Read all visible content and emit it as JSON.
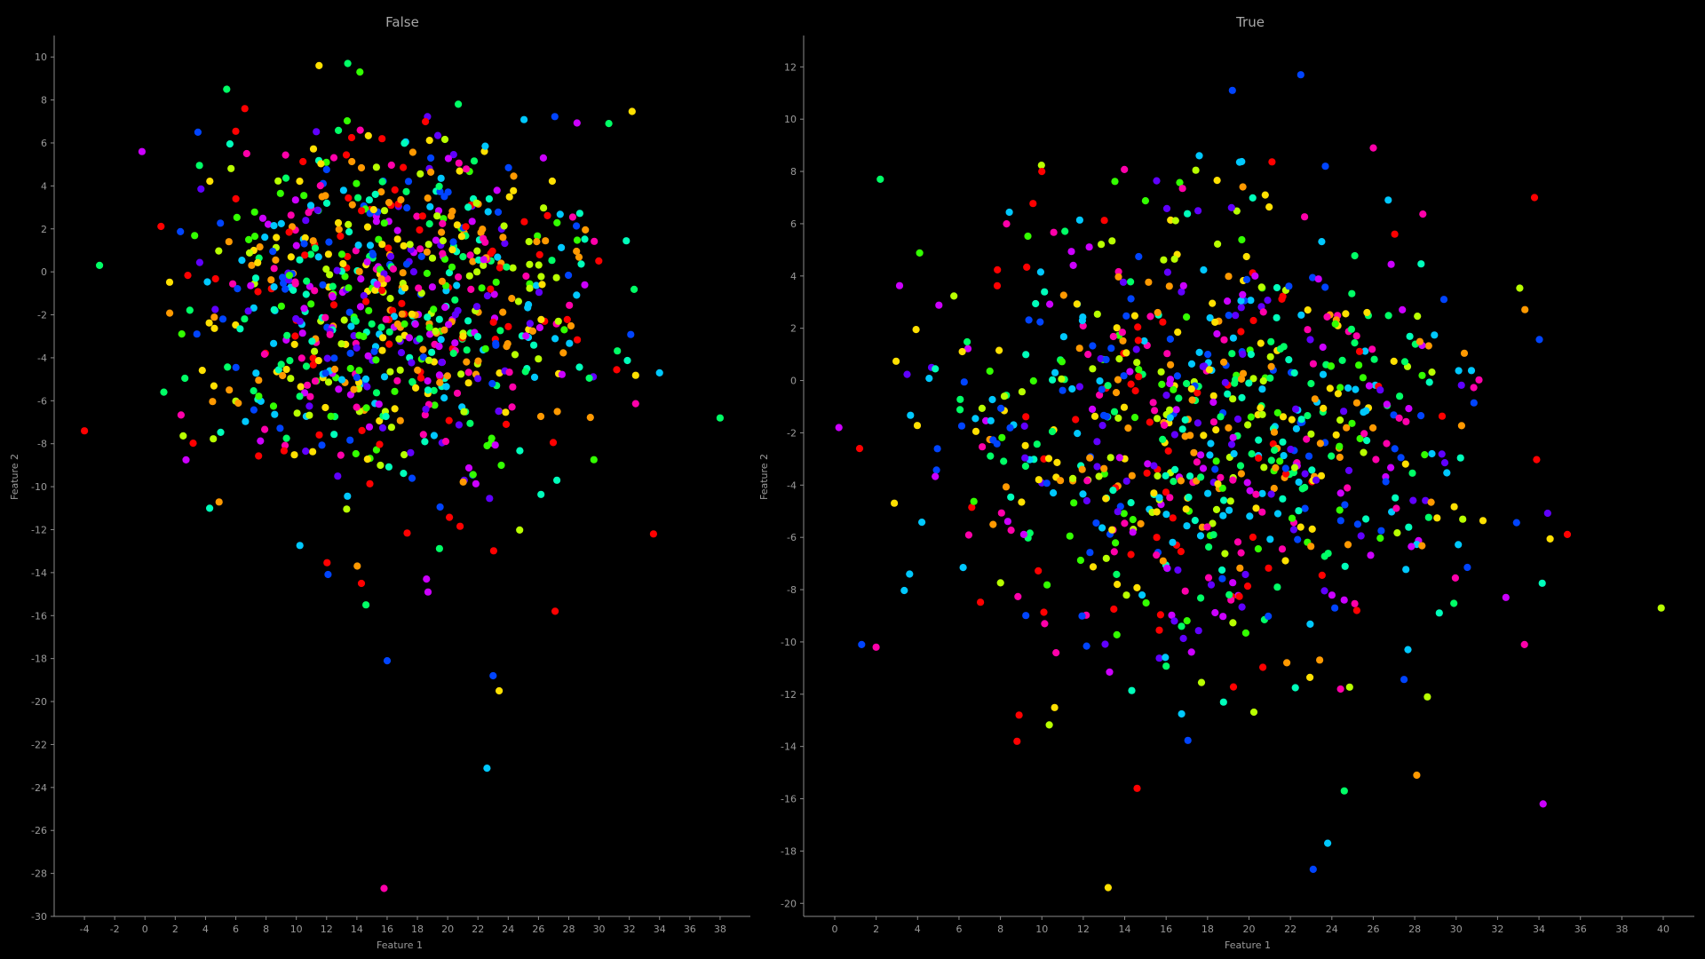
{
  "chart_data": [
    {
      "type": "scatter",
      "title": "False",
      "xlabel": "Feature 1",
      "ylabel": "Feature 2",
      "xlim": [
        -6,
        40
      ],
      "ylim": [
        -30,
        11
      ],
      "xticks": [
        -4,
        -2,
        0,
        2,
        4,
        6,
        8,
        10,
        12,
        14,
        16,
        18,
        20,
        22,
        24,
        26,
        28,
        30,
        32,
        34,
        36,
        38
      ],
      "yticks": [
        -30,
        -28,
        -26,
        -24,
        -22,
        -20,
        -18,
        -16,
        -14,
        -12,
        -10,
        -8,
        -6,
        -4,
        -2,
        0,
        2,
        4,
        6,
        8,
        10
      ],
      "grid": false,
      "legend": "none",
      "palette": [
        "#ff0000",
        "#ff9900",
        "#ffe000",
        "#b8ff00",
        "#33ff00",
        "#00ff66",
        "#00ffbb",
        "#00c8ff",
        "#0044ff",
        "#6000ff",
        "#cc00ff",
        "#ff00aa"
      ],
      "notable_points": [
        {
          "x": -4.0,
          "y": -7.4,
          "color": "#ff0000"
        },
        {
          "x": -3.0,
          "y": 0.3,
          "color": "#00ff66"
        },
        {
          "x": -0.2,
          "y": 5.6,
          "color": "#cc00ff"
        },
        {
          "x": 3.5,
          "y": 6.5,
          "color": "#0044ff"
        },
        {
          "x": 11.5,
          "y": 9.6,
          "color": "#ffe000"
        },
        {
          "x": 13.4,
          "y": 9.7,
          "color": "#00ff66"
        },
        {
          "x": 14.2,
          "y": 9.3,
          "color": "#33ff00"
        },
        {
          "x": 5.4,
          "y": 8.5,
          "color": "#00ff66"
        },
        {
          "x": 6.6,
          "y": 7.6,
          "color": "#ff0000"
        },
        {
          "x": 20.7,
          "y": 7.8,
          "color": "#00ff66"
        },
        {
          "x": 38.0,
          "y": -6.8,
          "color": "#00ff66"
        },
        {
          "x": 34.0,
          "y": -4.7,
          "color": "#00c8ff"
        },
        {
          "x": 33.6,
          "y": -12.2,
          "color": "#ff0000"
        },
        {
          "x": 14.3,
          "y": -14.5,
          "color": "#ff0000"
        },
        {
          "x": 14.6,
          "y": -15.5,
          "color": "#00ff66"
        },
        {
          "x": 27.1,
          "y": -15.8,
          "color": "#ff0000"
        },
        {
          "x": 18.6,
          "y": -14.3,
          "color": "#cc00ff"
        },
        {
          "x": 18.7,
          "y": -14.9,
          "color": "#cc00ff"
        },
        {
          "x": 16.0,
          "y": -18.1,
          "color": "#0044ff"
        },
        {
          "x": 23.0,
          "y": -18.8,
          "color": "#0044ff"
        },
        {
          "x": 23.4,
          "y": -19.5,
          "color": "#ffe000"
        },
        {
          "x": 22.6,
          "y": -23.1,
          "color": "#00c8ff"
        },
        {
          "x": 15.8,
          "y": -28.7,
          "color": "#ff00aa"
        }
      ],
      "cluster": {
        "count": 820,
        "center": [
          16.5,
          -1.4
        ],
        "sd": [
          6.6,
          4.3
        ],
        "x_range": [
          1,
          33
        ],
        "y_range": [
          -14.5,
          7.8
        ]
      }
    },
    {
      "type": "scatter",
      "title": "True",
      "xlabel": "Feature 1",
      "ylabel": "Feature 2",
      "xlim": [
        -1.5,
        41.5
      ],
      "ylim": [
        -20.5,
        13.2
      ],
      "xticks": [
        0,
        2,
        4,
        6,
        8,
        10,
        12,
        14,
        16,
        18,
        20,
        22,
        24,
        26,
        28,
        30,
        32,
        34,
        36,
        38,
        40
      ],
      "yticks": [
        -20,
        -18,
        -16,
        -14,
        -12,
        -10,
        -8,
        -6,
        -4,
        -2,
        0,
        2,
        4,
        6,
        8,
        10,
        12
      ],
      "grid": false,
      "legend": "none",
      "palette": [
        "#ff0000",
        "#ff9900",
        "#ffe000",
        "#b8ff00",
        "#33ff00",
        "#00ff66",
        "#00ffbb",
        "#00c8ff",
        "#0044ff",
        "#6000ff",
        "#cc00ff",
        "#ff00aa"
      ],
      "notable_points": [
        {
          "x": 0.2,
          "y": -1.8,
          "color": "#cc00ff"
        },
        {
          "x": 2.2,
          "y": 7.7,
          "color": "#00ff66"
        },
        {
          "x": 1.2,
          "y": -2.6,
          "color": "#ff0000"
        },
        {
          "x": 1.3,
          "y": -10.1,
          "color": "#0044ff"
        },
        {
          "x": 2.0,
          "y": -10.2,
          "color": "#ff00aa"
        },
        {
          "x": 19.2,
          "y": 11.1,
          "color": "#0044ff"
        },
        {
          "x": 22.5,
          "y": 11.7,
          "color": "#0044ff"
        },
        {
          "x": 26.0,
          "y": 8.9,
          "color": "#ff00aa"
        },
        {
          "x": 17.6,
          "y": 8.6,
          "color": "#00c8ff"
        },
        {
          "x": 10.0,
          "y": 8.0,
          "color": "#ff0000"
        },
        {
          "x": 39.9,
          "y": -8.7,
          "color": "#b8ff00"
        },
        {
          "x": 34.2,
          "y": -16.2,
          "color": "#cc00ff"
        },
        {
          "x": 33.3,
          "y": -10.1,
          "color": "#ff00aa"
        },
        {
          "x": 28.1,
          "y": -15.1,
          "color": "#ff9900"
        },
        {
          "x": 14.6,
          "y": -15.6,
          "color": "#ff0000"
        },
        {
          "x": 24.6,
          "y": -15.7,
          "color": "#00ff66"
        },
        {
          "x": 23.8,
          "y": -17.7,
          "color": "#00c8ff"
        },
        {
          "x": 23.1,
          "y": -18.7,
          "color": "#0044ff"
        },
        {
          "x": 13.2,
          "y": -19.4,
          "color": "#ffe000"
        },
        {
          "x": 8.9,
          "y": -12.8,
          "color": "#ff0000"
        },
        {
          "x": 8.8,
          "y": -13.8,
          "color": "#ff0000"
        }
      ],
      "cluster": {
        "count": 820,
        "center": [
          18.5,
          -2.0
        ],
        "sd": [
          6.7,
          4.6
        ],
        "x_range": [
          2,
          36
        ],
        "y_range": [
          -14.5,
          8.5
        ]
      }
    }
  ]
}
